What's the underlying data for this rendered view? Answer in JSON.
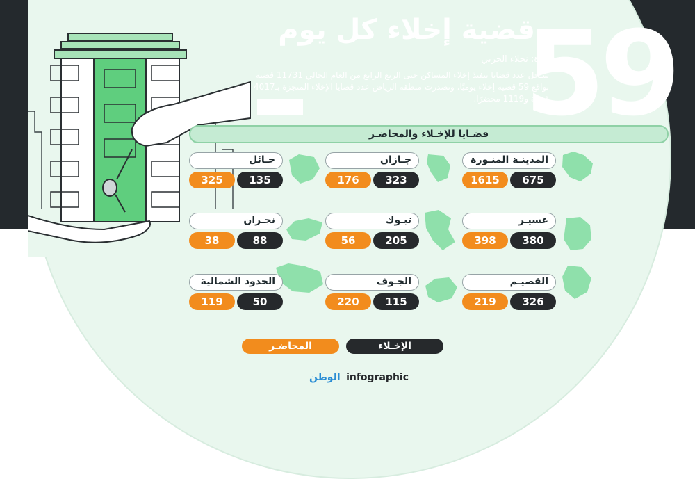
{
  "headline": {
    "big_number": "59",
    "title": "قضية إخلاء كل يوم",
    "byline": "جدة: نجلاء الحربي",
    "intro": "سـجل عدد قضايا تنفيذ إخلاء المساكن حتى الربع الرابع من العام الحالي 11731 قضية بواقع 59 قضية إخلاء يوميًا، وتصدرت منطقة الرياض عدد قضايا الإخلاء المنجزة بـ4017 قضية و1119 محضرًا."
  },
  "section_title": "قضـايا للإخـلاء والمحاضـر",
  "regions": [
    {
      "name": "المدينـة المنـورة",
      "eviction": "675",
      "reports": "1615"
    },
    {
      "name": "جـازان",
      "eviction": "323",
      "reports": "176"
    },
    {
      "name": "حـائل",
      "eviction": "135",
      "reports": "325"
    },
    {
      "name": "عسيـر",
      "eviction": "380",
      "reports": "398"
    },
    {
      "name": "تبـوك",
      "eviction": "205",
      "reports": "56"
    },
    {
      "name": "نجـران",
      "eviction": "88",
      "reports": "38"
    },
    {
      "name": "القصيـم",
      "eviction": "326",
      "reports": "219"
    },
    {
      "name": "الجـوف",
      "eviction": "115",
      "reports": "220"
    },
    {
      "name": "الحدود الشمالية",
      "eviction": "50",
      "reports": "119"
    }
  ],
  "legend": {
    "eviction_label": "الإخـلاء",
    "reports_label": "المحاضـر"
  },
  "footer": {
    "brand": "الوطن",
    "label": "infographic"
  },
  "colors": {
    "dark": "#26292c",
    "orange": "#f28c1d",
    "mint": "#e9f7ee",
    "map_green": "#8fe0ab"
  }
}
